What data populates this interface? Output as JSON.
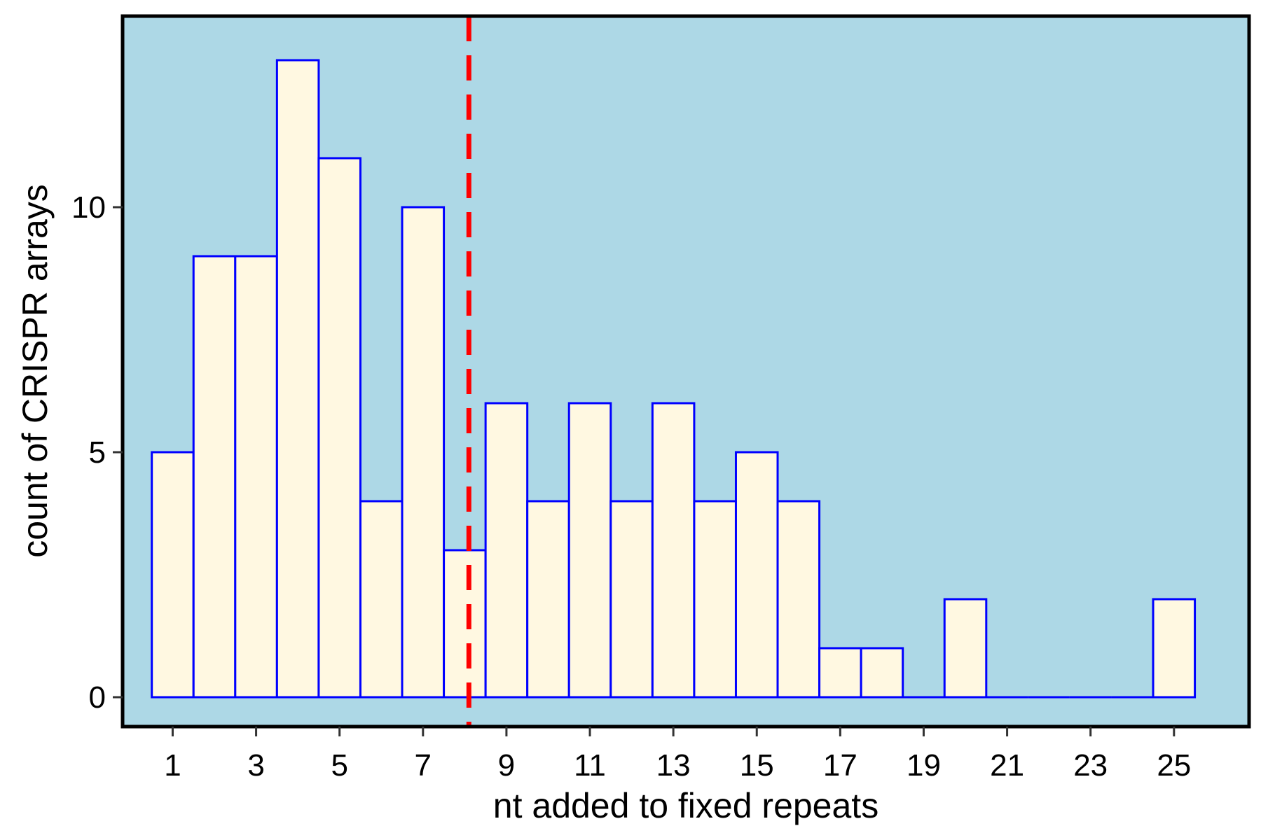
{
  "chart_data": {
    "type": "bar",
    "title": "",
    "xlabel": "nt added to fixed repeats",
    "ylabel": "count of CRISPR arrays",
    "x": [
      1,
      2,
      3,
      4,
      5,
      6,
      7,
      8,
      9,
      10,
      11,
      12,
      13,
      14,
      15,
      16,
      17,
      18,
      19,
      20,
      21,
      22,
      23,
      24,
      25
    ],
    "values": [
      5,
      9,
      9,
      13,
      11,
      4,
      10,
      3,
      6,
      4,
      6,
      4,
      6,
      4,
      5,
      4,
      1,
      1,
      0,
      2,
      0,
      0,
      0,
      0,
      2
    ],
    "xlim": [
      -0.2,
      26.8
    ],
    "ylim": [
      -0.6,
      13.9
    ],
    "xticks": [
      "1",
      "3",
      "5",
      "7",
      "9",
      "11",
      "13",
      "15",
      "17",
      "19",
      "21",
      "23",
      "25"
    ],
    "yticks": [
      "0",
      "5",
      "10"
    ],
    "reference_line": {
      "x": 8.1,
      "style": "dashed"
    },
    "grid": false,
    "colors": {
      "panel_background": "#add8e6",
      "bar_fill": "#fff8e1",
      "bar_border": "#0000ff",
      "reference_line": "#ff0000",
      "frame": "#000000"
    }
  }
}
